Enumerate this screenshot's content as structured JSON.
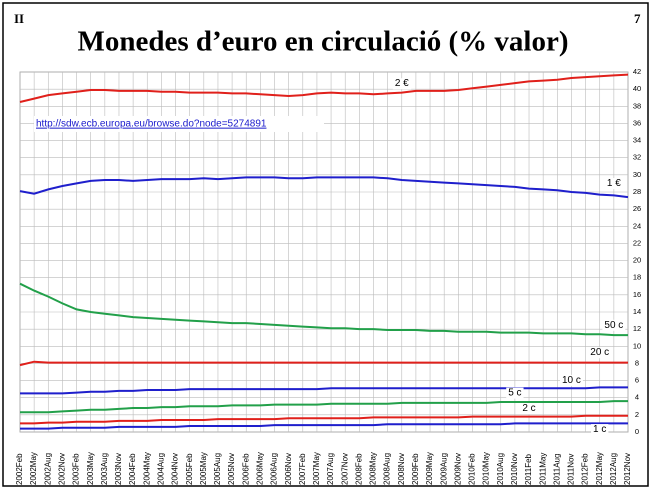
{
  "page_left": "II",
  "page_right": "7",
  "link": "http://sdw.ecb.europa.eu/browse.do?node=5274891",
  "chart_data": {
    "type": "line",
    "title": "Monedes d’euro en circulació (% valor)",
    "categories": [
      "2002Feb",
      "2002May",
      "2002Aug",
      "2002Nov",
      "2003Feb",
      "2003May",
      "2003Aug",
      "2003Nov",
      "2004Feb",
      "2004May",
      "2004Aug",
      "2004Nov",
      "2005Feb",
      "2005May",
      "2005Aug",
      "2005Nov",
      "2006Feb",
      "2006May",
      "2006Aug",
      "2006Nov",
      "2007Feb",
      "2007May",
      "2007Aug",
      "2007Nov",
      "2008Feb",
      "2008May",
      "2008Aug",
      "2008Nov",
      "2009Feb",
      "2009May",
      "2009Aug",
      "2009Nov",
      "2010Feb",
      "2010May",
      "2010Aug",
      "2010Nov",
      "2011Feb",
      "2011May",
      "2011Aug",
      "2011Nov",
      "2012Feb",
      "2012May",
      "2012Aug",
      "2012Nov"
    ],
    "series": [
      {
        "name": "2 €",
        "color": "#e0201b",
        "values": [
          38.5,
          38.9,
          39.3,
          39.5,
          39.7,
          39.9,
          39.9,
          39.8,
          39.8,
          39.8,
          39.7,
          39.7,
          39.6,
          39.6,
          39.6,
          39.5,
          39.5,
          39.4,
          39.3,
          39.2,
          39.3,
          39.5,
          39.6,
          39.5,
          39.5,
          39.4,
          39.5,
          39.6,
          39.8,
          39.8,
          39.8,
          39.9,
          40.1,
          40.3,
          40.5,
          40.7,
          40.9,
          41.0,
          41.1,
          41.3,
          41.4,
          41.5,
          41.6,
          41.7
        ]
      },
      {
        "name": "1 €",
        "color": "#1f1fcc",
        "values": [
          28.1,
          27.8,
          28.3,
          28.7,
          29.0,
          29.3,
          29.4,
          29.4,
          29.3,
          29.4,
          29.5,
          29.5,
          29.5,
          29.6,
          29.5,
          29.6,
          29.7,
          29.7,
          29.7,
          29.6,
          29.6,
          29.7,
          29.7,
          29.7,
          29.7,
          29.7,
          29.6,
          29.4,
          29.3,
          29.2,
          29.1,
          29.0,
          28.9,
          28.8,
          28.7,
          28.6,
          28.4,
          28.3,
          28.2,
          28.0,
          27.9,
          27.7,
          27.6,
          27.4
        ]
      },
      {
        "name": "50 c",
        "color": "#22a04a",
        "values": [
          17.3,
          16.5,
          15.8,
          15.0,
          14.3,
          14.0,
          13.8,
          13.6,
          13.4,
          13.3,
          13.2,
          13.1,
          13.0,
          12.9,
          12.8,
          12.7,
          12.7,
          12.6,
          12.5,
          12.4,
          12.3,
          12.2,
          12.1,
          12.1,
          12.0,
          12.0,
          11.9,
          11.9,
          11.9,
          11.8,
          11.8,
          11.7,
          11.7,
          11.7,
          11.6,
          11.6,
          11.6,
          11.5,
          11.5,
          11.5,
          11.4,
          11.4,
          11.3,
          11.3
        ]
      },
      {
        "name": "20 c",
        "color": "#e0201b",
        "values": [
          7.8,
          8.2,
          8.1,
          8.1,
          8.1,
          8.1,
          8.1,
          8.1,
          8.1,
          8.1,
          8.1,
          8.1,
          8.1,
          8.1,
          8.1,
          8.1,
          8.1,
          8.1,
          8.1,
          8.1,
          8.1,
          8.1,
          8.1,
          8.1,
          8.1,
          8.1,
          8.1,
          8.1,
          8.1,
          8.1,
          8.1,
          8.1,
          8.1,
          8.1,
          8.1,
          8.1,
          8.1,
          8.1,
          8.1,
          8.1,
          8.1,
          8.1,
          8.1,
          8.1
        ]
      },
      {
        "name": "10 c",
        "color": "#1f1fcc",
        "values": [
          4.5,
          4.5,
          4.5,
          4.5,
          4.6,
          4.7,
          4.7,
          4.8,
          4.8,
          4.9,
          4.9,
          4.9,
          5.0,
          5.0,
          5.0,
          5.0,
          5.0,
          5.0,
          5.0,
          5.0,
          5.0,
          5.0,
          5.1,
          5.1,
          5.1,
          5.1,
          5.1,
          5.1,
          5.1,
          5.1,
          5.1,
          5.1,
          5.1,
          5.1,
          5.1,
          5.1,
          5.1,
          5.1,
          5.1,
          5.1,
          5.1,
          5.2,
          5.2,
          5.2
        ]
      },
      {
        "name": "5 c",
        "color": "#22a04a",
        "values": [
          2.3,
          2.3,
          2.3,
          2.4,
          2.5,
          2.6,
          2.6,
          2.7,
          2.8,
          2.8,
          2.9,
          2.9,
          3.0,
          3.0,
          3.0,
          3.1,
          3.1,
          3.1,
          3.2,
          3.2,
          3.2,
          3.2,
          3.3,
          3.3,
          3.3,
          3.3,
          3.3,
          3.4,
          3.4,
          3.4,
          3.4,
          3.4,
          3.4,
          3.4,
          3.5,
          3.5,
          3.5,
          3.5,
          3.5,
          3.5,
          3.5,
          3.5,
          3.6,
          3.6
        ]
      },
      {
        "name": "2 c",
        "color": "#e0201b",
        "values": [
          1.0,
          1.0,
          1.1,
          1.1,
          1.2,
          1.2,
          1.2,
          1.3,
          1.3,
          1.3,
          1.4,
          1.4,
          1.4,
          1.4,
          1.5,
          1.5,
          1.5,
          1.5,
          1.5,
          1.6,
          1.6,
          1.6,
          1.6,
          1.6,
          1.6,
          1.7,
          1.7,
          1.7,
          1.7,
          1.7,
          1.7,
          1.7,
          1.8,
          1.8,
          1.8,
          1.8,
          1.8,
          1.8,
          1.8,
          1.8,
          1.9,
          1.9,
          1.9,
          1.9
        ]
      },
      {
        "name": "1 c",
        "color": "#1f1fcc",
        "values": [
          0.4,
          0.4,
          0.4,
          0.5,
          0.5,
          0.5,
          0.5,
          0.6,
          0.6,
          0.6,
          0.6,
          0.6,
          0.7,
          0.7,
          0.7,
          0.7,
          0.7,
          0.7,
          0.8,
          0.8,
          0.8,
          0.8,
          0.8,
          0.8,
          0.8,
          0.8,
          0.9,
          0.9,
          0.9,
          0.9,
          0.9,
          0.9,
          0.9,
          0.9,
          0.9,
          1.0,
          1.0,
          1.0,
          1.0,
          1.0,
          1.0,
          1.0,
          1.0,
          1.0
        ]
      }
    ],
    "ylim": [
      0,
      42
    ],
    "yticks": [
      0,
      2,
      4,
      6,
      8,
      10,
      12,
      14,
      16,
      18,
      20,
      22,
      24,
      26,
      28,
      30,
      32,
      34,
      36,
      38,
      40,
      42
    ],
    "grid": true
  }
}
